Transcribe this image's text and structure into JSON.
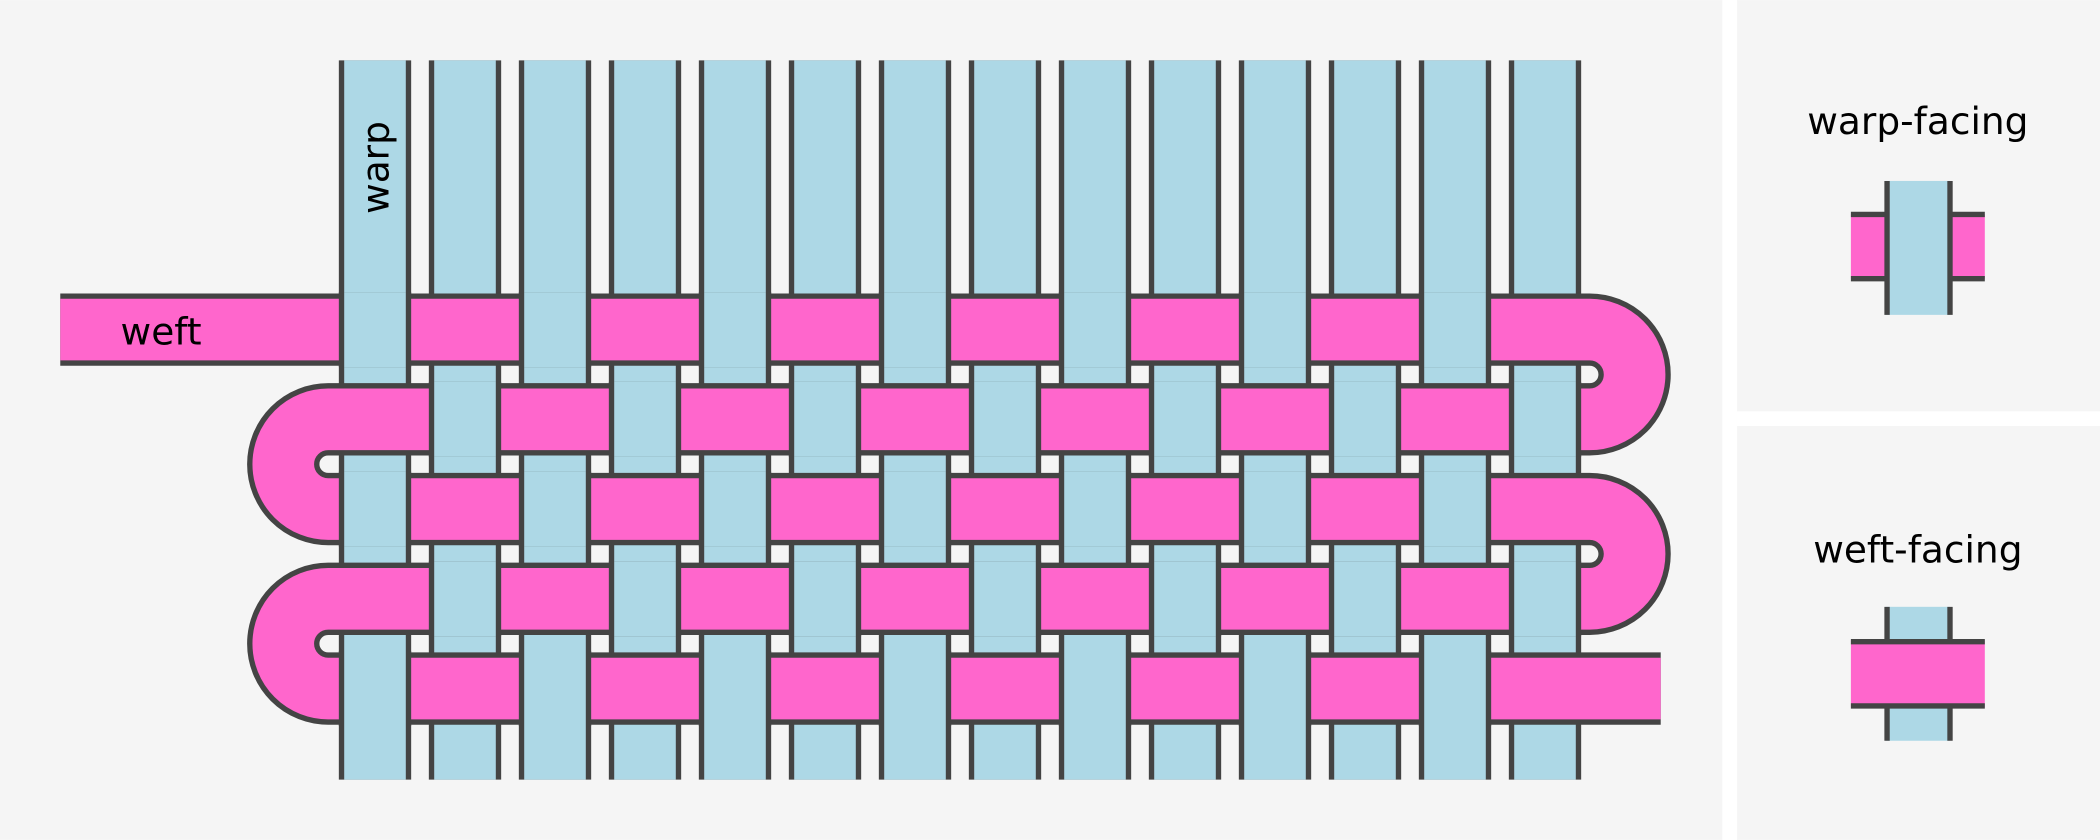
{
  "main": {
    "warp_label": "warp",
    "weft_label": "weft",
    "warp_count": 14,
    "weft_rows": 5
  },
  "legend": {
    "warp_facing_label": "warp-facing",
    "weft_facing_label": "weft-facing"
  },
  "colors": {
    "warp": "#add8e6",
    "weft": "#ff66cc",
    "outline": "#444444",
    "background": "#f5f5f5",
    "divider": "#ffffff"
  }
}
